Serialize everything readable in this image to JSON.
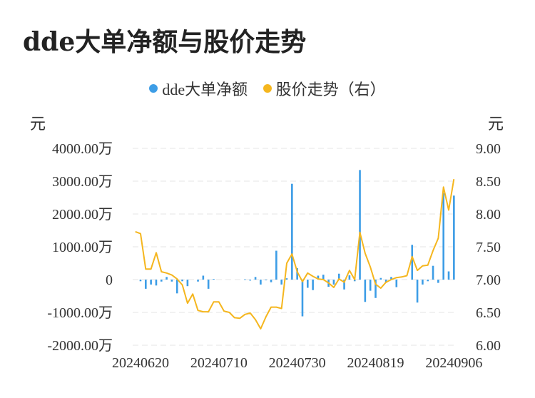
{
  "title": "dde大单净额与股价走势",
  "legend": {
    "series1": "dde大单净额",
    "series2": "股价走势（右）"
  },
  "left_unit": "元",
  "right_unit": "元",
  "colors": {
    "bar": "#3d9de6",
    "line": "#f5b61e",
    "grid": "#e6e6e6"
  },
  "chart_data": {
    "type": "bar",
    "left_axis": {
      "ticks": [
        "4000.00万",
        "3000.00万",
        "2000.00万",
        "1000.00万",
        "0",
        "-1000.00万",
        "-2000.00万"
      ],
      "ylim": [
        -2000,
        4000
      ],
      "unit": "万"
    },
    "right_axis": {
      "ticks": [
        "9.00",
        "8.50",
        "8.00",
        "7.50",
        "7.00",
        "6.50",
        "6.00"
      ],
      "ylim": [
        6.0,
        9.0
      ]
    },
    "x_tick_labels": [
      "20240620",
      "20240710",
      "20240730",
      "20240819",
      "20240906"
    ],
    "x_tick_index": [
      1,
      16,
      31,
      46,
      61
    ],
    "grid": true,
    "series": [
      {
        "name": "dde大单净额",
        "kind": "bar",
        "axis": "left",
        "values": [
          0,
          -50,
          -280,
          -150,
          -180,
          -60,
          80,
          -60,
          -420,
          -50,
          -200,
          0,
          -60,
          120,
          -280,
          20,
          0,
          0,
          0,
          0,
          0,
          10,
          -30,
          80,
          -150,
          -20,
          -80,
          880,
          -150,
          40,
          2920,
          350,
          -1120,
          -250,
          -320,
          120,
          150,
          -220,
          -150,
          180,
          -300,
          130,
          -50,
          3340,
          -680,
          -340,
          -560,
          50,
          -100,
          80,
          -230,
          0,
          0,
          1060,
          -700,
          -150,
          -50,
          420,
          -100,
          2640,
          250,
          2560
        ]
      },
      {
        "name": "股价走势（右）",
        "kind": "line",
        "axis": "right",
        "values": [
          7.73,
          7.7,
          7.16,
          7.16,
          7.41,
          7.12,
          7.1,
          7.07,
          7.01,
          6.92,
          6.64,
          6.78,
          6.53,
          6.51,
          6.51,
          6.66,
          6.66,
          6.52,
          6.5,
          6.42,
          6.41,
          6.47,
          6.49,
          6.39,
          6.25,
          6.43,
          6.58,
          6.58,
          6.56,
          7.25,
          7.39,
          7.12,
          6.97,
          7.1,
          7.05,
          7.01,
          7.0,
          6.95,
          6.88,
          7.01,
          6.96,
          7.14,
          7.0,
          7.72,
          7.4,
          7.19,
          6.93,
          6.87,
          6.96,
          7.0,
          7.03,
          7.04,
          7.06,
          7.35,
          7.14,
          7.21,
          7.22,
          7.44,
          7.63,
          8.41,
          8.06,
          8.53
        ]
      }
    ]
  }
}
